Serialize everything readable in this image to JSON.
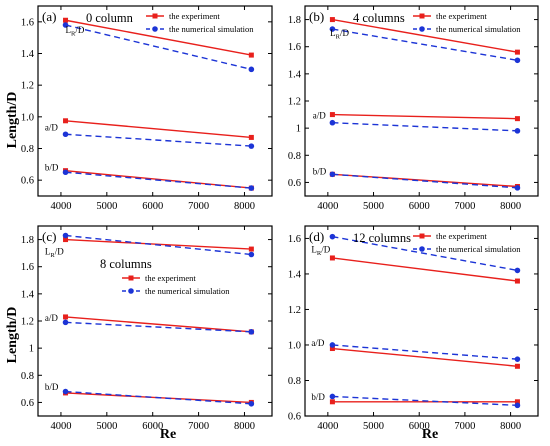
{
  "figure": {
    "ylabel": "Length/D",
    "xlabel": "Re",
    "colors": {
      "experiment": "#e8201c",
      "simulation": "#1c34d6",
      "axis": "#000000"
    }
  },
  "chart_data": [
    {
      "type": "line",
      "panel_label": "(a)",
      "title": "0 column",
      "xlabel": "",
      "ylabel": "Length/D",
      "xlim": [
        3500,
        8600
      ],
      "ylim": [
        0.5,
        1.7
      ],
      "xticks": [
        "4000",
        "5000",
        "6000",
        "7000",
        "8000"
      ],
      "yticks": [
        "0.6",
        "0.8",
        "1.0",
        "1.2",
        "1.4",
        "1.6"
      ],
      "legend": {
        "position": "top-right",
        "entries": [
          "the experiment",
          "the numerical simulation"
        ]
      },
      "annotations": [
        {
          "text": "L",
          "sub": "R",
          "rest": "/D",
          "x": 4100,
          "y": 1.53
        },
        {
          "text": "a/D",
          "x": 3650,
          "y": 0.915
        },
        {
          "text": "b/D",
          "x": 3650,
          "y": 0.66
        }
      ],
      "series": [
        {
          "name": "the experiment",
          "group": "LR/D",
          "x": [
            4100,
            8150
          ],
          "values": [
            1.61,
            1.39
          ]
        },
        {
          "name": "the numerical simulation",
          "group": "LR/D",
          "x": [
            4100,
            8150
          ],
          "values": [
            1.58,
            1.3
          ]
        },
        {
          "name": "the experiment",
          "group": "a/D",
          "x": [
            4100,
            8150
          ],
          "values": [
            0.975,
            0.87
          ]
        },
        {
          "name": "the numerical simulation",
          "group": "a/D",
          "x": [
            4100,
            8150
          ],
          "values": [
            0.89,
            0.815
          ]
        },
        {
          "name": "the experiment",
          "group": "b/D",
          "x": [
            4100,
            8150
          ],
          "values": [
            0.66,
            0.55
          ]
        },
        {
          "name": "the numerical simulation",
          "group": "b/D",
          "x": [
            4100,
            8150
          ],
          "values": [
            0.65,
            0.55
          ]
        }
      ]
    },
    {
      "type": "line",
      "panel_label": "(b)",
      "title": "4 columns",
      "xlabel": "",
      "ylabel": "",
      "xlim": [
        3500,
        8600
      ],
      "ylim": [
        0.5,
        1.9
      ],
      "xticks": [
        "4000",
        "5000",
        "6000",
        "7000",
        "8000"
      ],
      "yticks": [
        "0.6",
        "0.8",
        "1",
        "1.2",
        "1.4",
        "1.6",
        "1.8"
      ],
      "legend": {
        "position": "top-right",
        "entries": [
          "the experiment",
          "the numerical simulation"
        ]
      },
      "annotations": [
        {
          "text": "L",
          "sub": "R",
          "rest": "/D",
          "x": 4050,
          "y": 1.68
        },
        {
          "text": "a/D",
          "x": 3670,
          "y": 1.07
        },
        {
          "text": "b/D",
          "x": 3670,
          "y": 0.66
        }
      ],
      "series": [
        {
          "name": "the experiment",
          "group": "LR/D",
          "x": [
            4100,
            8150
          ],
          "values": [
            1.8,
            1.56
          ]
        },
        {
          "name": "the numerical simulation",
          "group": "LR/D",
          "x": [
            4100,
            8150
          ],
          "values": [
            1.73,
            1.5
          ]
        },
        {
          "name": "the experiment",
          "group": "a/D",
          "x": [
            4100,
            8150
          ],
          "values": [
            1.1,
            1.07
          ]
        },
        {
          "name": "the numerical simulation",
          "group": "a/D",
          "x": [
            4100,
            8150
          ],
          "values": [
            1.04,
            0.98
          ]
        },
        {
          "name": "the experiment",
          "group": "b/D",
          "x": [
            4100,
            8150
          ],
          "values": [
            0.66,
            0.57
          ]
        },
        {
          "name": "the numerical simulation",
          "group": "b/D",
          "x": [
            4100,
            8150
          ],
          "values": [
            0.66,
            0.56
          ]
        }
      ]
    },
    {
      "type": "line",
      "panel_label": "(c)",
      "title": "8 columns",
      "xlabel": "Re",
      "ylabel": "Length/D",
      "xlim": [
        3500,
        8600
      ],
      "ylim": [
        0.5,
        1.9
      ],
      "xticks": [
        "4000",
        "5000",
        "6000",
        "7000",
        "8000"
      ],
      "yticks": [
        "0.6",
        "0.8",
        "1",
        "1.2",
        "1.4",
        "1.6",
        "1.8"
      ],
      "legend": {
        "position": "center-right",
        "entries": [
          "the experiment",
          "the numerical simulation"
        ]
      },
      "annotations": [
        {
          "text": "L",
          "sub": "R",
          "rest": "/D",
          "x": 3650,
          "y": 1.69
        },
        {
          "text": "a/D",
          "x": 3650,
          "y": 1.2
        },
        {
          "text": "b/D",
          "x": 3650,
          "y": 0.69
        }
      ],
      "series": [
        {
          "name": "the experiment",
          "group": "LR/D",
          "x": [
            4100,
            8150
          ],
          "values": [
            1.8,
            1.73
          ]
        },
        {
          "name": "the numerical simulation",
          "group": "LR/D",
          "x": [
            4100,
            8150
          ],
          "values": [
            1.83,
            1.69
          ]
        },
        {
          "name": "the experiment",
          "group": "a/D",
          "x": [
            4100,
            8150
          ],
          "values": [
            1.23,
            1.12
          ]
        },
        {
          "name": "the numerical simulation",
          "group": "a/D",
          "x": [
            4100,
            8150
          ],
          "values": [
            1.19,
            1.12
          ]
        },
        {
          "name": "the experiment",
          "group": "b/D",
          "x": [
            4100,
            8150
          ],
          "values": [
            0.67,
            0.6
          ]
        },
        {
          "name": "the numerical simulation",
          "group": "b/D",
          "x": [
            4100,
            8150
          ],
          "values": [
            0.68,
            0.59
          ]
        }
      ]
    },
    {
      "type": "line",
      "panel_label": "(d)",
      "title": "12 columns",
      "xlabel": "Re",
      "ylabel": "",
      "xlim": [
        3500,
        8600
      ],
      "ylim": [
        0.6,
        1.67
      ],
      "xticks": [
        "4000",
        "5000",
        "6000",
        "7000",
        "8000"
      ],
      "yticks": [
        "0.6",
        "0.8",
        "1.0",
        "1.2",
        "1.4",
        "1.6"
      ],
      "legend": {
        "position": "top-right",
        "entries": [
          "the experiment",
          "the numerical simulation"
        ]
      },
      "annotations": [
        {
          "text": "L",
          "sub": "R",
          "rest": "/D",
          "x": 3640,
          "y": 1.52
        },
        {
          "text": "a/D",
          "x": 3640,
          "y": 0.995
        },
        {
          "text": "b/D",
          "x": 3640,
          "y": 0.69
        }
      ],
      "series": [
        {
          "name": "the experiment",
          "group": "LR/D",
          "x": [
            4100,
            8150
          ],
          "values": [
            1.49,
            1.36
          ]
        },
        {
          "name": "the numerical simulation",
          "group": "LR/D",
          "x": [
            4100,
            8150
          ],
          "values": [
            1.61,
            1.42
          ]
        },
        {
          "name": "the experiment",
          "group": "a/D",
          "x": [
            4100,
            8150
          ],
          "values": [
            0.98,
            0.88
          ]
        },
        {
          "name": "the numerical simulation",
          "group": "a/D",
          "x": [
            4100,
            8150
          ],
          "values": [
            1.0,
            0.92
          ]
        },
        {
          "name": "the experiment",
          "group": "b/D",
          "x": [
            4100,
            8150
          ],
          "values": [
            0.68,
            0.68
          ]
        },
        {
          "name": "the numerical simulation",
          "group": "b/D",
          "x": [
            4100,
            8150
          ],
          "values": [
            0.71,
            0.66
          ]
        }
      ]
    }
  ]
}
